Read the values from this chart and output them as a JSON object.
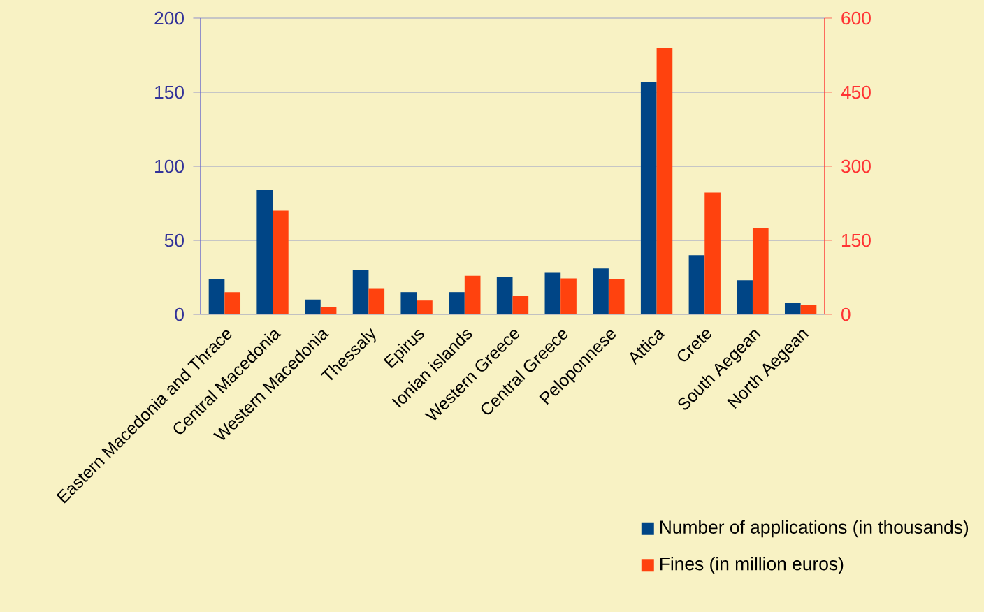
{
  "chart_data": {
    "type": "bar",
    "categories": [
      "Eastern Macedonia and Thrace",
      "Central Macedonia",
      "Western Macedonia",
      "Thessaly",
      "Epirus",
      "Ionian islands",
      "Western Greece",
      "Central Greece",
      "Peloponnese",
      "Attica",
      "Crete",
      "South Aegean",
      "North Aegean"
    ],
    "series": [
      {
        "name": "Number of applications (in thousands)",
        "color": "#004586",
        "values": [
          24,
          84,
          10,
          30,
          15,
          15,
          25,
          28,
          31,
          157,
          40,
          23,
          8
        ]
      },
      {
        "name": "Fines (in million euros)",
        "color": "#ff420e",
        "axis": "y2",
        "values": [
          45,
          210,
          15,
          53,
          28,
          78,
          38,
          73,
          71,
          540,
          247,
          174,
          19
        ]
      }
    ],
    "ylim": [
      0,
      200
    ],
    "yticks": [
      0,
      50,
      100,
      150,
      200
    ],
    "y2lim": [
      0,
      600
    ],
    "y2ticks": [
      0,
      150,
      300,
      450,
      600
    ],
    "grid": "y",
    "legend": "bottom right"
  }
}
